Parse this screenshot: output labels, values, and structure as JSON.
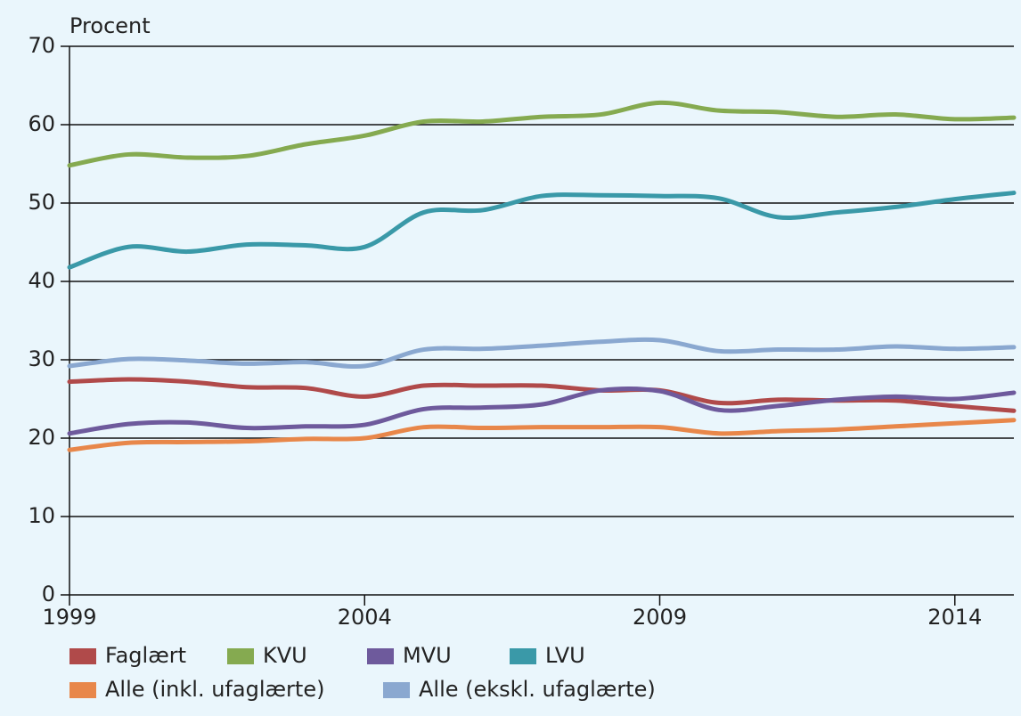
{
  "chart_data": {
    "type": "line",
    "ylabel": "Procent",
    "x": [
      1999,
      2000,
      2001,
      2002,
      2003,
      2004,
      2005,
      2006,
      2007,
      2008,
      2009,
      2010,
      2011,
      2012,
      2013,
      2014,
      2015
    ],
    "xlim": [
      1999,
      2015
    ],
    "xticks": [
      1999,
      2004,
      2009,
      2014
    ],
    "ylim": [
      0,
      70
    ],
    "yticks": [
      0,
      10,
      20,
      30,
      40,
      50,
      60,
      70
    ],
    "grid": true,
    "series": [
      {
        "name": "Faglært",
        "color": "#b04a4a",
        "values": [
          27.2,
          27.5,
          27.2,
          26.5,
          26.4,
          25.3,
          26.7,
          26.7,
          26.7,
          26.1,
          26.1,
          24.5,
          24.9,
          24.8,
          24.8,
          24.1,
          23.5
        ]
      },
      {
        "name": "KVU",
        "color": "#85aa50",
        "values": [
          54.8,
          56.2,
          55.8,
          56.0,
          57.5,
          58.6,
          60.4,
          60.4,
          61.0,
          61.3,
          62.8,
          61.8,
          61.6,
          61.0,
          61.3,
          60.7,
          60.9
        ]
      },
      {
        "name": "MVU",
        "color": "#6e5a9c",
        "values": [
          20.6,
          21.8,
          22.0,
          21.3,
          21.5,
          21.7,
          23.7,
          23.9,
          24.3,
          26.1,
          26.0,
          23.6,
          24.1,
          24.9,
          25.3,
          25.0,
          25.8
        ]
      },
      {
        "name": "LVU",
        "color": "#3a99a8",
        "values": [
          41.8,
          44.4,
          43.8,
          44.7,
          44.6,
          44.4,
          48.8,
          49.1,
          50.9,
          51.0,
          50.9,
          50.6,
          48.2,
          48.8,
          49.5,
          50.5,
          51.3
        ]
      },
      {
        "name": "Alle (inkl. ufaglærte)",
        "color": "#e8874a",
        "values": [
          18.5,
          19.4,
          19.5,
          19.6,
          19.9,
          20.0,
          21.4,
          21.3,
          21.4,
          21.4,
          21.4,
          20.6,
          20.9,
          21.1,
          21.5,
          21.9,
          22.3
        ]
      },
      {
        "name": "Alle (ekskl. ufaglærte)",
        "color": "#8aa8d0",
        "values": [
          29.2,
          30.1,
          29.9,
          29.5,
          29.7,
          29.2,
          31.3,
          31.4,
          31.8,
          32.3,
          32.5,
          31.1,
          31.3,
          31.3,
          31.7,
          31.4,
          31.6
        ]
      }
    ]
  }
}
